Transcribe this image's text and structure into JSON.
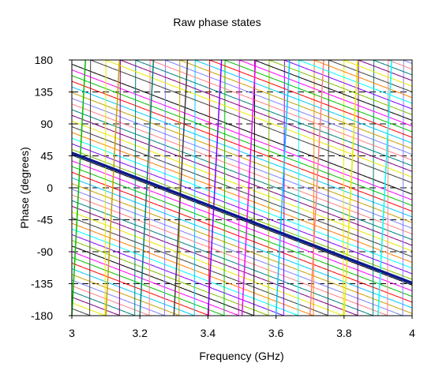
{
  "chart_data": {
    "type": "line",
    "title": "Raw phase states",
    "xlabel": "Frequency (GHz)",
    "ylabel": "Phase (degrees)",
    "xlim": [
      3,
      4
    ],
    "ylim": [
      -180,
      180
    ],
    "x_ticks": [
      "3",
      "3.2",
      "3.4",
      "3.6",
      "3.8",
      "4"
    ],
    "y_ticks": [
      "180",
      "135",
      "90",
      "45",
      "0",
      "-45",
      "-90",
      "-135",
      "-180"
    ],
    "grid": "horizontal dashed",
    "legend": "none",
    "wrap_period_deg": 360,
    "slope_deg_per_ghz": -183,
    "highlighted_series": {
      "color": "#0a1a8c",
      "phase_at_3ghz": 49,
      "phase_at_4ghz": -134
    },
    "state_phases_at_3ghz": [
      174,
      166,
      158,
      150,
      142,
      134,
      126,
      118,
      110,
      102,
      94,
      86,
      78,
      70,
      62,
      54,
      46,
      38,
      30,
      22,
      14,
      6,
      -2,
      -10,
      -18,
      -26,
      -34,
      -42,
      -50,
      -58,
      -66,
      -74,
      -82,
      -90,
      -98,
      -106,
      -114,
      -122,
      -130,
      -138,
      -146,
      -154,
      -162,
      -170
    ],
    "series_colors": [
      "#000000",
      "#ff00ff",
      "#00c000",
      "#ff0000",
      "#00c8ff",
      "#c8a000",
      "#8080ff",
      "#ff8080",
      "#008080",
      "#800080",
      "#e8e800",
      "#404040",
      "#ff8000",
      "#00ffff",
      "#8000ff",
      "#80c000"
    ],
    "wrap_frequencies_ghz": [
      3.0,
      3.1,
      3.2,
      3.3,
      3.4,
      3.5,
      3.6,
      3.7,
      3.8,
      3.9,
      4.0
    ]
  }
}
